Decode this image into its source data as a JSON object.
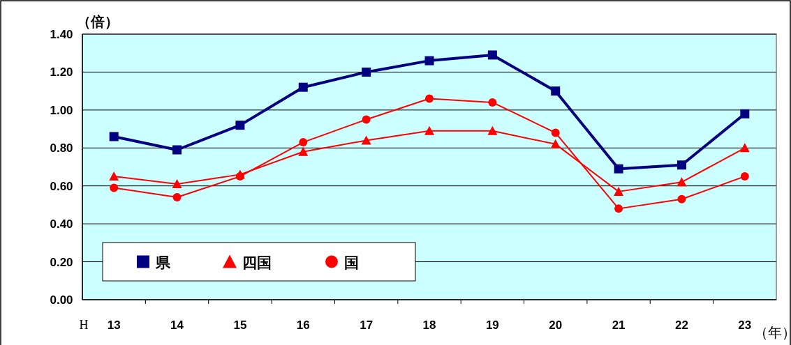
{
  "chart_data": {
    "type": "line",
    "ylabel": "（倍）",
    "xlabel": "（年）",
    "annotations": [
      "H"
    ],
    "categories": [
      "13",
      "14",
      "15",
      "16",
      "17",
      "18",
      "19",
      "20",
      "21",
      "22",
      "23"
    ],
    "ylim": [
      0,
      1.4
    ],
    "yticks": [
      {
        "value": 0,
        "label": "0.00"
      },
      {
        "value": 0.2,
        "label": "0.20"
      },
      {
        "value": 0.4,
        "label": "0.40"
      },
      {
        "value": 0.6,
        "label": "0.60"
      },
      {
        "value": 0.8,
        "label": "0.80"
      },
      {
        "value": 1.0,
        "label": "1.00"
      },
      {
        "value": 1.2,
        "label": "1.20"
      },
      {
        "value": 1.4,
        "label": "1.40"
      }
    ],
    "grid": "y",
    "legend": "bottom left",
    "series": [
      {
        "name": "県",
        "color": "#000080",
        "marker": "square",
        "values": [
          0.86,
          0.79,
          0.92,
          1.12,
          1.2,
          1.26,
          1.29,
          1.1,
          0.69,
          0.71,
          0.98
        ]
      },
      {
        "name": "四国",
        "color": "#ff0000",
        "marker": "triangle",
        "values": [
          0.65,
          0.61,
          0.66,
          0.78,
          0.84,
          0.89,
          0.89,
          0.82,
          0.57,
          0.62,
          0.8
        ]
      },
      {
        "name": "国",
        "color": "#ff0000",
        "marker": "circle",
        "values": [
          0.59,
          0.54,
          0.65,
          0.83,
          0.95,
          1.06,
          1.04,
          0.88,
          0.48,
          0.53,
          0.65
        ]
      }
    ]
  }
}
